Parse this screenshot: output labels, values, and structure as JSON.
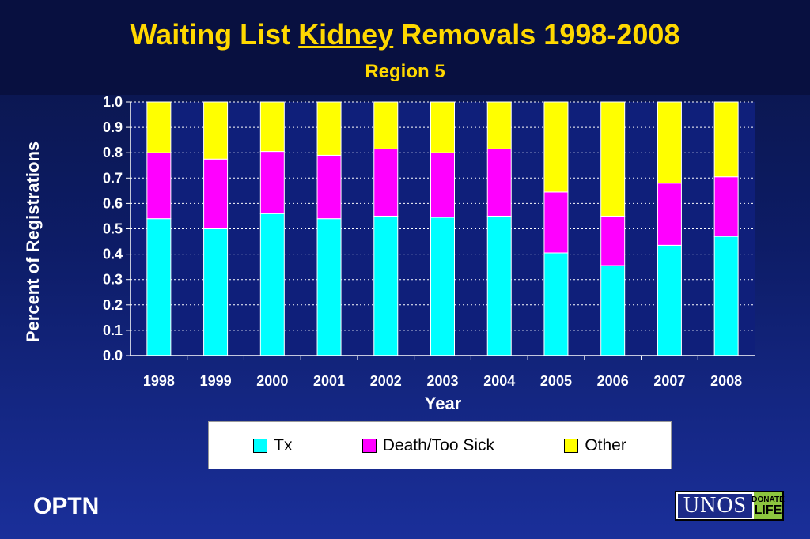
{
  "title": {
    "before": "Waiting List ",
    "keyword": "Kidney",
    "after": " Removals 1998-2008"
  },
  "subtitle": "Region 5",
  "footer": {
    "left": "OPTN"
  },
  "logo": {
    "main": "UNOS",
    "side_top": "DONATE",
    "side_bottom": "LIFE"
  },
  "colors": {
    "background": "#0d1c66",
    "title": "#ffd800",
    "plot_bg": "#0f1f7a",
    "grid": "#ffffff"
  },
  "chart_data": {
    "type": "bar",
    "stacked": true,
    "xlabel": "Year",
    "ylabel": "Percent of Registrations",
    "ylim": [
      0,
      1
    ],
    "yticks": [
      "0.0",
      "0.1",
      "0.2",
      "0.3",
      "0.4",
      "0.5",
      "0.6",
      "0.7",
      "0.8",
      "0.9",
      "1.0"
    ],
    "grid": true,
    "legend_position": "bottom",
    "categories": [
      "1998",
      "1999",
      "2000",
      "2001",
      "2002",
      "2003",
      "2004",
      "2005",
      "2006",
      "2007",
      "2008"
    ],
    "series": [
      {
        "name": "Tx",
        "color": "#00ffff",
        "values": [
          0.54,
          0.5,
          0.56,
          0.54,
          0.55,
          0.545,
          0.55,
          0.405,
          0.355,
          0.435,
          0.47
        ]
      },
      {
        "name": "Death/Too Sick",
        "color": "#ff00ff",
        "values": [
          0.26,
          0.275,
          0.245,
          0.25,
          0.265,
          0.255,
          0.265,
          0.24,
          0.195,
          0.245,
          0.235
        ]
      },
      {
        "name": "Other",
        "color": "#ffff00",
        "values": [
          0.2,
          0.225,
          0.195,
          0.21,
          0.185,
          0.2,
          0.185,
          0.355,
          0.45,
          0.32,
          0.295
        ]
      }
    ]
  }
}
